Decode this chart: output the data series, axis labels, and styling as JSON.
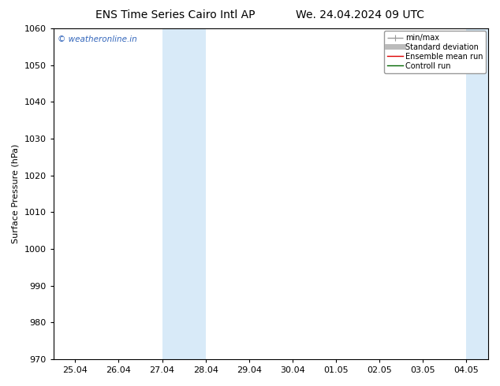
{
  "title_left": "ENS Time Series Cairo Intl AP",
  "title_right": "We. 24.04.2024 09 UTC",
  "ylabel": "Surface Pressure (hPa)",
  "ylim": [
    970,
    1060
  ],
  "yticks": [
    970,
    980,
    990,
    1000,
    1010,
    1020,
    1030,
    1040,
    1050,
    1060
  ],
  "xtick_labels": [
    "25.04",
    "26.04",
    "27.04",
    "28.04",
    "29.04",
    "30.04",
    "01.05",
    "02.05",
    "03.05",
    "04.05"
  ],
  "watermark": "© weatheronline.in",
  "watermark_color": "#3366bb",
  "bg_color": "#ffffff",
  "shaded_bands": [
    {
      "xstart": 2.0,
      "xend": 3.0,
      "color": "#d8eaf8"
    },
    {
      "xstart": 9.0,
      "xend": 10.5,
      "color": "#d8eaf8"
    }
  ],
  "legend_entries": [
    {
      "label": "min/max",
      "color": "#999999",
      "lw": 1.0
    },
    {
      "label": "Standard deviation",
      "color": "#bbbbbb",
      "lw": 5
    },
    {
      "label": "Ensemble mean run",
      "color": "#dd0000",
      "lw": 1.0
    },
    {
      "label": "Controll run",
      "color": "#006600",
      "lw": 1.0
    }
  ],
  "title_fontsize": 10,
  "axis_fontsize": 8,
  "tick_fontsize": 8,
  "ylabel_fontsize": 8
}
